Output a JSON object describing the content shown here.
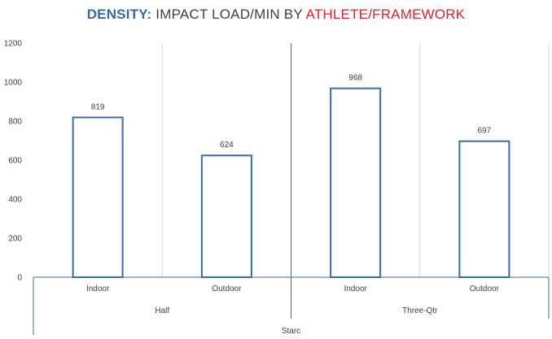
{
  "title": {
    "part1": "DENSITY:",
    "part2": " IMPACT LOAD/MIN BY ",
    "part3": "ATHLETE/FRAMEWORK",
    "color1": "#3a68a8",
    "color2": "#404040",
    "color3": "#e0202a"
  },
  "colors": {
    "bar_stroke": "#3d6aa6",
    "bar_fill": "#ffffff",
    "axis": "#3d6aa6",
    "grid": "#d9d9d9"
  },
  "chart_data": {
    "type": "bar",
    "title": "DENSITY: IMPACT LOAD/MIN BY ATHLETE/FRAMEWORK",
    "xlabel": "",
    "ylabel": "",
    "ylim": [
      0,
      1200
    ],
    "yticks": [
      "0",
      "200",
      "400",
      "600",
      "800",
      "1000",
      "1200"
    ],
    "grid": "vertical separators between categories",
    "legend": "none",
    "athlete": "Starc",
    "frameworks": [
      "Half",
      "Three-Qtr"
    ],
    "categories": [
      "Indoor",
      "Outdoor",
      "Indoor",
      "Outdoor"
    ],
    "values": [
      819,
      624,
      968,
      697
    ],
    "data_labels": [
      "819",
      "624",
      "968",
      "697"
    ]
  }
}
